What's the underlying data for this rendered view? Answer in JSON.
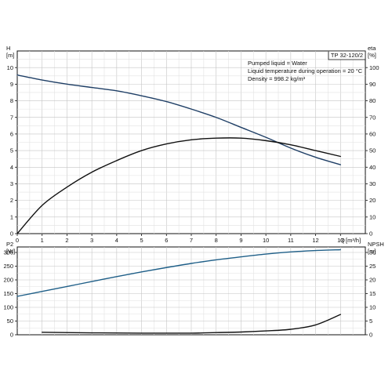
{
  "chart_data": [
    {
      "type": "line",
      "panel": "top",
      "x_axis": {
        "label": "Q",
        "unit": "[m³/h]",
        "range": [
          0,
          14
        ],
        "ticks": [
          0,
          1,
          2,
          3,
          4,
          5,
          6,
          7,
          8,
          9,
          10,
          11,
          12,
          13
        ]
      },
      "y_left": {
        "label": "H",
        "unit": "[m]",
        "range": [
          0,
          11
        ],
        "ticks": [
          0,
          1,
          2,
          3,
          4,
          5,
          6,
          7,
          8,
          9,
          10
        ]
      },
      "y_right": {
        "label": "eta",
        "unit": "[%]",
        "range": [
          0,
          110
        ],
        "ticks": [
          0,
          10,
          20,
          30,
          40,
          50,
          60,
          70,
          80,
          90,
          100
        ]
      },
      "grid": true,
      "model_tag": "TP 32-120/2",
      "info_lines": [
        "Pumped liquid = Water",
        "Liquid temperature during operation = 20 °C",
        "Density = 998.2 kg/m³"
      ],
      "series": [
        {
          "color": "#1f3f66",
          "axis": "left",
          "points": [
            [
              0,
              9.55
            ],
            [
              1,
              9.25
            ],
            [
              2,
              9.0
            ],
            [
              3,
              8.8
            ],
            [
              4,
              8.6
            ],
            [
              5,
              8.3
            ],
            [
              6,
              7.95
            ],
            [
              7,
              7.5
            ],
            [
              8,
              7.0
            ],
            [
              9,
              6.4
            ],
            [
              10,
              5.8
            ],
            [
              11,
              5.15
            ],
            [
              12,
              4.6
            ],
            [
              13,
              4.15
            ]
          ]
        },
        {
          "color": "#111111",
          "axis": "right",
          "points": [
            [
              0,
              0
            ],
            [
              1,
              17
            ],
            [
              2,
              28
            ],
            [
              3,
              37
            ],
            [
              4,
              44
            ],
            [
              5,
              50
            ],
            [
              6,
              54
            ],
            [
              7,
              56.5
            ],
            [
              8,
              57.5
            ],
            [
              9,
              57.5
            ],
            [
              10,
              56
            ],
            [
              11,
              53.5
            ],
            [
              12,
              50
            ],
            [
              13,
              46.5
            ]
          ]
        }
      ]
    },
    {
      "type": "line",
      "panel": "bottom",
      "x_axis": {
        "range": [
          0,
          14
        ]
      },
      "y_left": {
        "label": "P2",
        "unit": "[W]",
        "range": [
          0,
          320
        ],
        "ticks": [
          0,
          50,
          100,
          150,
          200,
          250,
          300
        ]
      },
      "y_right": {
        "label": "NPSH",
        "unit": "[m]",
        "range": [
          0,
          32
        ],
        "ticks": [
          0,
          5,
          10,
          15,
          20,
          25,
          30
        ]
      },
      "grid": true,
      "series": [
        {
          "color": "#1f5f88",
          "axis": "left",
          "points": [
            [
              0,
              140
            ],
            [
              1,
              158
            ],
            [
              2,
              176
            ],
            [
              3,
              194
            ],
            [
              4,
              212
            ],
            [
              5,
              229
            ],
            [
              6,
              245
            ],
            [
              7,
              260
            ],
            [
              8,
              273
            ],
            [
              9,
              284
            ],
            [
              10,
              294
            ],
            [
              11,
              302
            ],
            [
              12,
              307
            ],
            [
              13,
              310
            ]
          ]
        },
        {
          "color": "#111111",
          "axis": "right",
          "points": [
            [
              1,
              0.9
            ],
            [
              3,
              0.7
            ],
            [
              5,
              0.6
            ],
            [
              7,
              0.6
            ],
            [
              8,
              0.8
            ],
            [
              9,
              1.0
            ],
            [
              10,
              1.4
            ],
            [
              11,
              2.0
            ],
            [
              12,
              3.6
            ],
            [
              13,
              7.4
            ]
          ]
        }
      ]
    }
  ]
}
